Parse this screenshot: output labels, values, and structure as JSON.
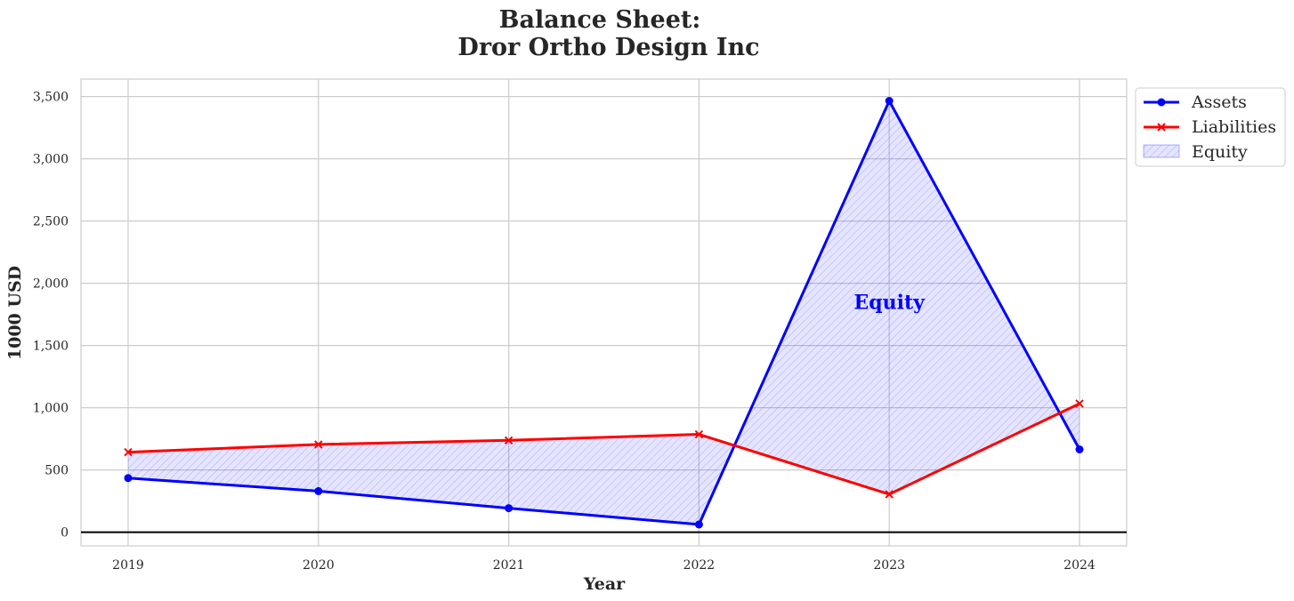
{
  "chart_data": {
    "type": "line",
    "title_lines": [
      "Balance Sheet:",
      "Dror Ortho Design Inc"
    ],
    "xlabel": "Year",
    "ylabel": "1000 USD",
    "categories": [
      "2019",
      "2020",
      "2021",
      "2022",
      "2023",
      "2024"
    ],
    "yticks": [
      0,
      500,
      1000,
      1500,
      2000,
      2500,
      3000,
      3500
    ],
    "ytick_labels": [
      "0",
      "500",
      "1,000",
      "1,500",
      "2,000",
      "2,500",
      "3,000",
      "3,500"
    ],
    "ylim": [
      -110,
      3640
    ],
    "grid": true,
    "legend_position": "outside-top-right",
    "series": [
      {
        "name": "Assets",
        "values": [
          435,
          330,
          193,
          62,
          3465,
          665
        ],
        "color": "#0000ff",
        "marker": "circle"
      },
      {
        "name": "Liabilities",
        "values": [
          643,
          705,
          738,
          786,
          305,
          1033
        ],
        "color": "#ff0000",
        "marker": "x"
      }
    ],
    "fill": {
      "name": "Equity",
      "between": [
        "Assets",
        "Liabilities"
      ],
      "color": "#0000ff"
    },
    "annotation": {
      "text": "Equity",
      "x": "2023",
      "y": 1850,
      "color": "#0000ff"
    }
  }
}
